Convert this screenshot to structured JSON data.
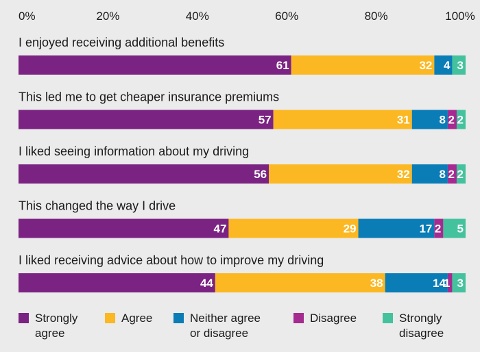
{
  "chart_data": {
    "type": "bar",
    "orientation": "horizontal",
    "stacked": true,
    "x_ticks": [
      "0%",
      "20%",
      "40%",
      "60%",
      "80%",
      "100%"
    ],
    "xlim": [
      0,
      100
    ],
    "categories": [
      "I enjoyed receiving additional benefits",
      "This led me to get cheaper insurance premiums",
      "I liked seeing information about my driving",
      "This changed the way I drive",
      "I liked receiving advice about how to improve my driving"
    ],
    "series": [
      {
        "name": "Strongly agree",
        "legend_lines": [
          "Strongly",
          "agree"
        ],
        "color": "#7b2382",
        "values": [
          61,
          57,
          56,
          47,
          44
        ]
      },
      {
        "name": "Agree",
        "legend_lines": [
          "Agree"
        ],
        "color": "#fbb823",
        "values": [
          32,
          31,
          32,
          29,
          38
        ]
      },
      {
        "name": "Neither agree or disagree",
        "legend_lines": [
          "Neither agree",
          "or disagree"
        ],
        "color": "#0a7cb6",
        "values": [
          4,
          8,
          8,
          17,
          14
        ]
      },
      {
        "name": "Disagree",
        "legend_lines": [
          "Disagree"
        ],
        "color": "#a52b91",
        "values": [
          0,
          2,
          2,
          2,
          1
        ]
      },
      {
        "name": "Strongly disagree",
        "legend_lines": [
          "Strongly",
          "disagree"
        ],
        "color": "#44c29d",
        "values": [
          3,
          2,
          2,
          5,
          3
        ]
      }
    ],
    "grid": false,
    "legend_position": "bottom"
  }
}
